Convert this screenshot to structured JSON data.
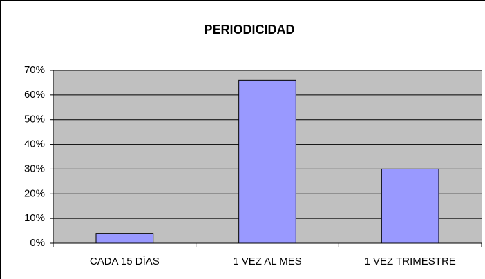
{
  "chart_data": {
    "type": "bar",
    "title": "PERIODICIDAD",
    "categories": [
      "CADA 15 DÍAS",
      "1 VEZ AL MES",
      "1 VEZ TRIMESTRE"
    ],
    "values": [
      4,
      66,
      30
    ],
    "color": "#9999ff",
    "ylim": [
      0,
      70
    ],
    "yticks": [
      {
        "value": 0,
        "label": "0%"
      },
      {
        "value": 10,
        "label": "10%"
      },
      {
        "value": 20,
        "label": "20%"
      },
      {
        "value": 30,
        "label": "30%"
      },
      {
        "value": 40,
        "label": "40%"
      },
      {
        "value": 50,
        "label": "50%"
      },
      {
        "value": 60,
        "label": "60%"
      },
      {
        "value": 70,
        "label": "70%"
      }
    ],
    "grid": true
  }
}
